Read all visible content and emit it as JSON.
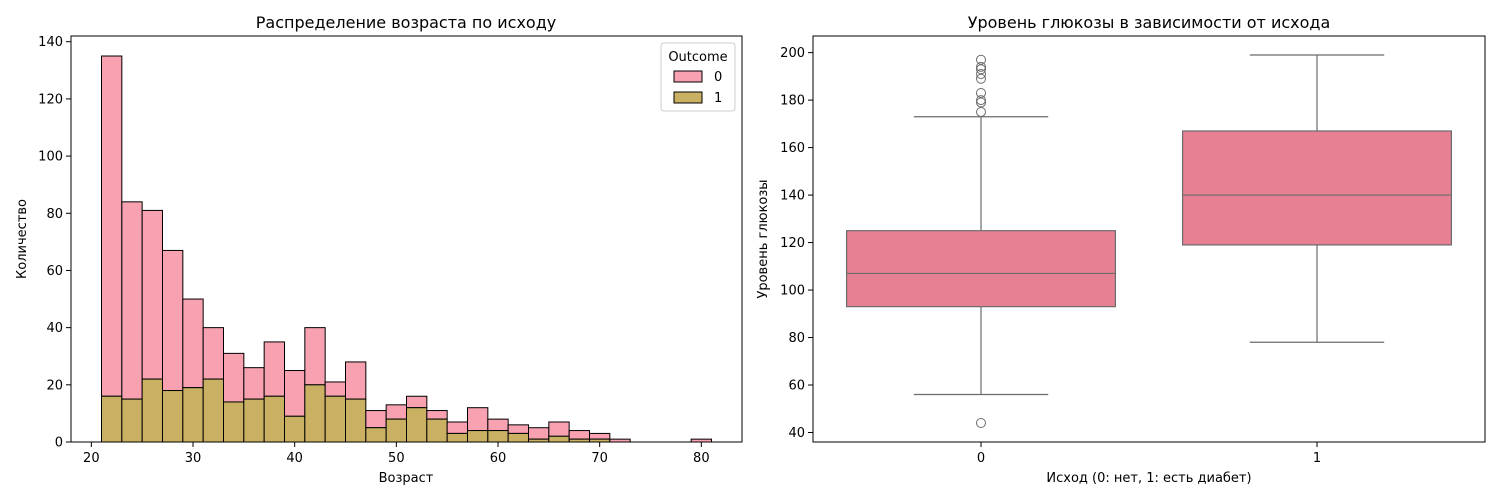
{
  "chart_data": [
    {
      "type": "bar",
      "subtype": "stacked-histogram",
      "title": "Распределение возраста по исходу",
      "xlabel": "Возраст",
      "ylabel": "Количество",
      "xlim": [
        18,
        84
      ],
      "ylim": [
        0,
        142
      ],
      "xticks": [
        20,
        30,
        40,
        50,
        60,
        70,
        80
      ],
      "yticks": [
        0,
        20,
        40,
        60,
        80,
        100,
        120,
        140
      ],
      "bin_edges": [
        21,
        23,
        25,
        27,
        29,
        31,
        33,
        35,
        37,
        39,
        41,
        43,
        45,
        47,
        49,
        51,
        53,
        55,
        57,
        59,
        61,
        63,
        65,
        67,
        69,
        71,
        73,
        75,
        77,
        79,
        81
      ],
      "legend": {
        "title": "Outcome",
        "position": "top-right"
      },
      "series": [
        {
          "name": "1",
          "color": "#c9b062",
          "values": [
            16,
            15,
            22,
            18,
            19,
            22,
            14,
            15,
            16,
            9,
            20,
            16,
            15,
            5,
            8,
            12,
            8,
            3,
            4,
            4,
            3,
            1,
            2,
            1,
            1,
            0,
            0,
            0,
            0,
            0
          ]
        },
        {
          "name": "0",
          "color": "#f7a1b1",
          "values": [
            119,
            69,
            59,
            49,
            31,
            18,
            17,
            11,
            19,
            16,
            20,
            5,
            13,
            6,
            5,
            4,
            3,
            4,
            8,
            4,
            3,
            4,
            5,
            3,
            2,
            1,
            0,
            0,
            0,
            1
          ]
        }
      ]
    },
    {
      "type": "box",
      "title": "Уровень глюкозы в зависимости от исхода",
      "xlabel": "Исход (0: нет, 1: есть диабет)",
      "ylabel": "Уровень глюкозы",
      "ylim": [
        36,
        207
      ],
      "yticks": [
        40,
        60,
        80,
        100,
        120,
        140,
        160,
        180,
        200
      ],
      "categories": [
        "0",
        "1"
      ],
      "box_color": "#e88093",
      "boxes": [
        {
          "category": "0",
          "whisker_low": 56,
          "q1": 93,
          "median": 107,
          "q3": 125,
          "whisker_high": 173,
          "outliers": [
            44,
            175,
            179,
            180,
            183,
            189,
            191,
            193,
            194,
            197
          ]
        },
        {
          "category": "1",
          "whisker_low": 78,
          "q1": 119,
          "median": 140,
          "q3": 167,
          "whisker_high": 199,
          "outliers": []
        }
      ]
    }
  ]
}
